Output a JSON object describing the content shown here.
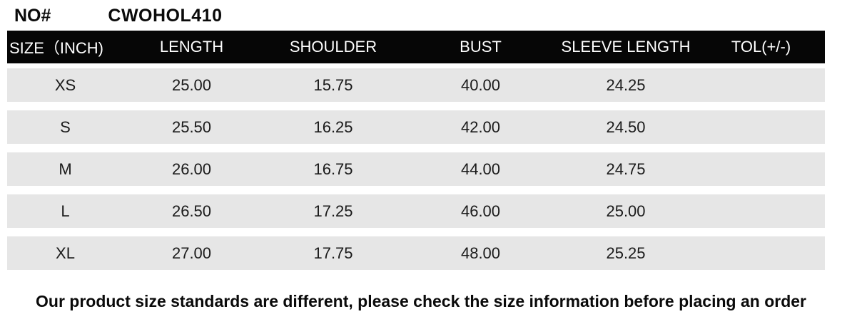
{
  "meta": {
    "no_label": "NO#",
    "no_value": "CWOHOL410"
  },
  "size_chart": {
    "headers": [
      "SIZE（INCH)",
      "LENGTH",
      "SHOULDER",
      "BUST",
      "SLEEVE LENGTH",
      "TOL(+/-)"
    ],
    "rows": [
      {
        "size": "XS",
        "length": "25.00",
        "shoulder": "15.75",
        "bust": "40.00",
        "sleeve_length": "24.25",
        "tol": ""
      },
      {
        "size": "S",
        "length": "25.50",
        "shoulder": "16.25",
        "bust": "42.00",
        "sleeve_length": "24.50",
        "tol": ""
      },
      {
        "size": "M",
        "length": "26.00",
        "shoulder": "16.75",
        "bust": "44.00",
        "sleeve_length": "24.75",
        "tol": ""
      },
      {
        "size": "L",
        "length": "26.50",
        "shoulder": "17.25",
        "bust": "46.00",
        "sleeve_length": "25.00",
        "tol": ""
      },
      {
        "size": "XL",
        "length": "27.00",
        "shoulder": "17.75",
        "bust": "48.00",
        "sleeve_length": "25.25",
        "tol": ""
      }
    ]
  },
  "footer": {
    "note": "Our product size standards are different, please check the size information before placing an order"
  },
  "colors": {
    "header_bg": "#060606",
    "header_text": "#ffffff",
    "row_bg": "#e6e6e6",
    "page_bg": "#ffffff",
    "text": "#111111"
  }
}
